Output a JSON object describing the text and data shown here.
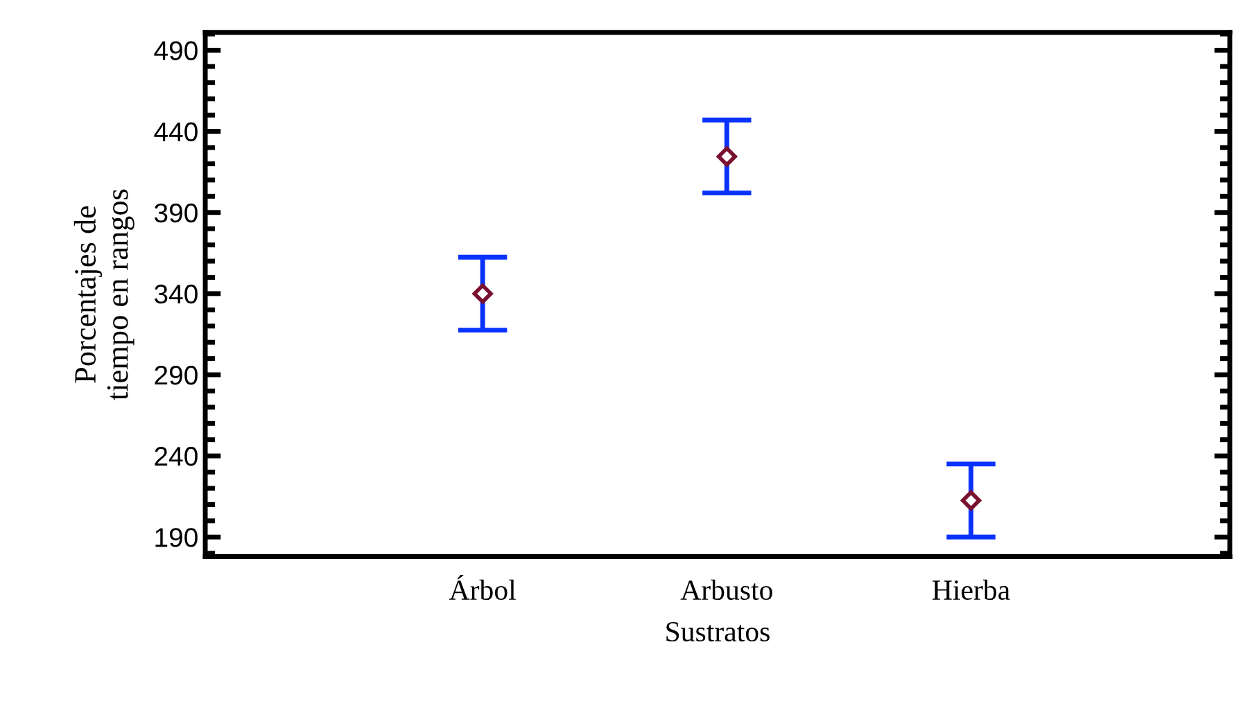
{
  "chart_data": {
    "type": "scatter",
    "xlabel": "Sustratos",
    "ylabel": "Porcentajes de\ntiempo en rangos",
    "categories": [
      "Árbol",
      "Arbusto",
      "Hierba"
    ],
    "series": [
      {
        "color": "#7a1030",
        "values": [
          340,
          424.5,
          212.5
        ],
        "errors": [
          22.5,
          22.5,
          22.5
        ]
      }
    ],
    "marker": "diamond",
    "ylim": [
      178,
      501
    ],
    "yticks": [
      190,
      240,
      290,
      340,
      390,
      440,
      490
    ],
    "grid": false,
    "legend": false
  }
}
